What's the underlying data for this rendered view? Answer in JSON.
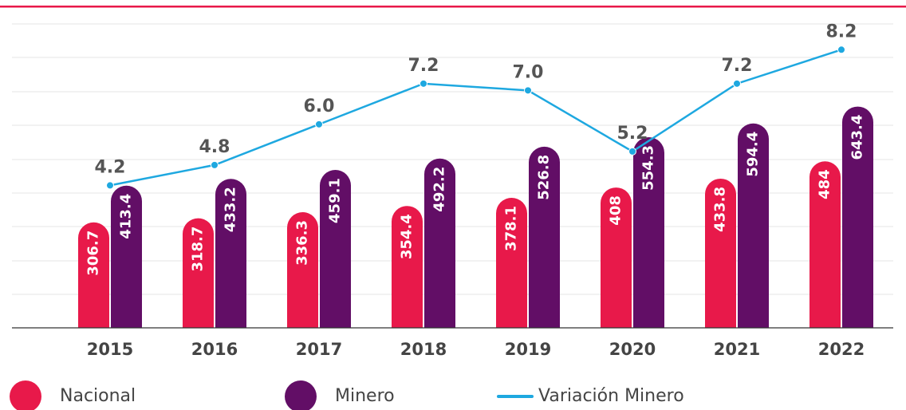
{
  "chart_data": {
    "type": "bar",
    "categories": [
      "2015",
      "2016",
      "2017",
      "2018",
      "2019",
      "2020",
      "2021",
      "2022"
    ],
    "series": [
      {
        "name": "Nacional",
        "color": "#e8194a",
        "values": [
          306.7,
          318.7,
          336.3,
          354.4,
          378.1,
          408.0,
          433.8,
          484.0
        ]
      },
      {
        "name": "Minero",
        "color": "#620e66",
        "values": [
          413.4,
          433.2,
          459.1,
          492.2,
          526.8,
          554.3,
          594.4,
          643.4
        ]
      },
      {
        "name": "Variación Minero",
        "type": "line",
        "axis": "y2",
        "color": "#1ea8e0",
        "values": [
          4.2,
          4.8,
          6.0,
          7.2,
          7.0,
          5.2,
          7.2,
          8.2
        ],
        "value_labels": [
          "4.2",
          "4.8",
          "6.0",
          "7.2",
          "7.0",
          "5.2",
          "7.2",
          "8.2"
        ]
      }
    ],
    "ylim": [
      0,
      930
    ],
    "y2lim": [
      0,
      9.43
    ]
  }
}
